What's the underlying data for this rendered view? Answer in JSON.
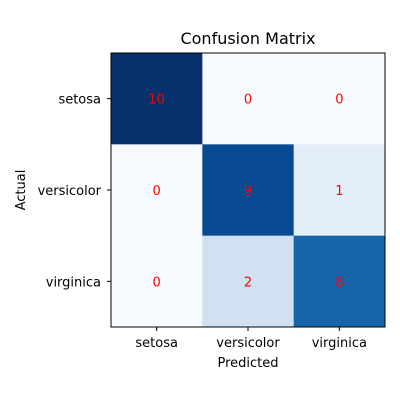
{
  "chart_data": {
    "type": "heatmap",
    "title": "Confusion Matrix",
    "xlabel": "Predicted",
    "ylabel": "Actual",
    "x_categories": [
      "setosa",
      "versicolor",
      "virginica"
    ],
    "y_categories": [
      "setosa",
      "versicolor",
      "virginica"
    ],
    "values": [
      [
        10,
        0,
        0
      ],
      [
        0,
        9,
        1
      ],
      [
        0,
        2,
        8
      ]
    ],
    "colormap": "Blues",
    "value_range": [
      0,
      10
    ],
    "annotation_color": "#ff0000",
    "grid": false
  }
}
